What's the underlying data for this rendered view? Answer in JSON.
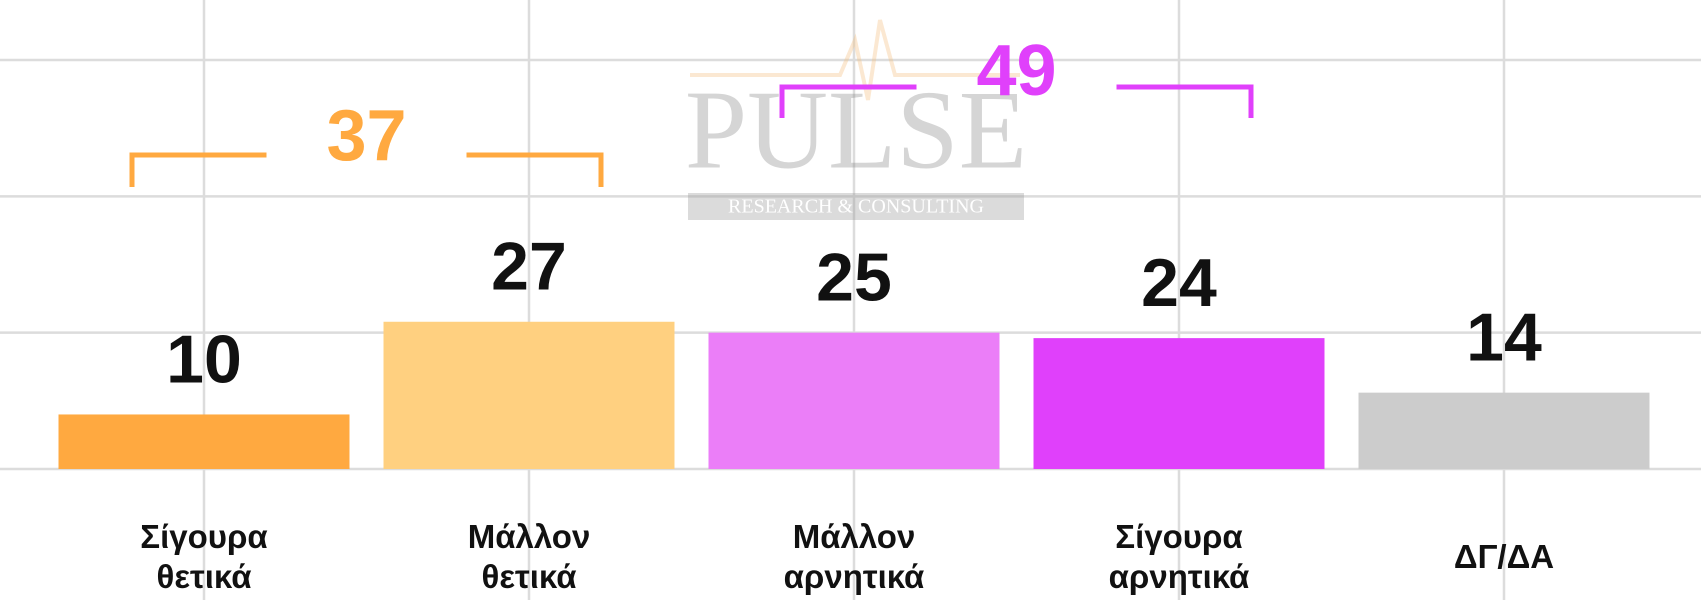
{
  "chart_data": {
    "type": "bar",
    "categories": [
      "Σίγουρα θετικά",
      "Μάλλον θετικά",
      "Μάλλον αρνητικά",
      "Σίγουρα αρνητικά",
      "ΔΓ/ΔΑ"
    ],
    "values": [
      10,
      27,
      25,
      24,
      14
    ],
    "colors": [
      "#ffa940",
      "#ffd080",
      "#eb7ef8",
      "#e040fb",
      "#cccccc"
    ],
    "ylim": [
      0,
      86
    ],
    "yticks": [
      0,
      25,
      50,
      75
    ],
    "grid": true,
    "annotations": [
      {
        "text": "37",
        "from": 0,
        "to": 1,
        "color": "#ffa940"
      },
      {
        "text": "49",
        "from": 2,
        "to": 3,
        "color": "#e040fb"
      }
    ],
    "watermark": {
      "title": "PULSE",
      "subtitle": "RESEARCH & CONSULTING"
    }
  }
}
